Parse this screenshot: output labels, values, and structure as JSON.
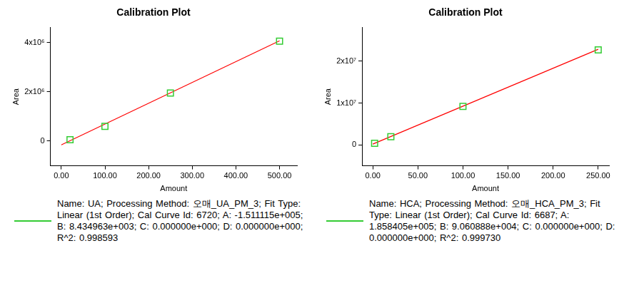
{
  "chart_data": [
    {
      "type": "scatter",
      "title": "Calibration Plot",
      "x_label": "Amount",
      "y_label": "Area",
      "xlim": [
        -25,
        540
      ],
      "xticks": [
        {
          "value": 0,
          "label": "0.00"
        },
        {
          "value": 100,
          "label": "100.00"
        },
        {
          "value": 200,
          "label": "200.00"
        },
        {
          "value": 300,
          "label": "300.00"
        },
        {
          "value": 400,
          "label": "400.00"
        },
        {
          "value": 500,
          "label": "500.00"
        }
      ],
      "ylim": [
        -1000000,
        4600000
      ],
      "yticks": [
        0,
        {
          "value": 2000000,
          "label": "2x10⁶"
        },
        {
          "value": 4000000,
          "label": "4x10⁶"
        }
      ],
      "grid": false,
      "series": [
        {
          "type": "scatter",
          "color": "#33cc33",
          "marker": "square",
          "x": [
            20,
            100,
            250,
            500
          ],
          "values": [
            60000,
            600000,
            1950000,
            4050000
          ]
        },
        {
          "type": "line",
          "color": "#ff0000",
          "line_style": "solid",
          "x": [
            0,
            500
          ],
          "values": [
            -150000,
            4066000
          ]
        }
      ],
      "caption": "Name: UA;   Processing Method: 오매_UA_PM_3; Fit Type: Linear (1st Order);   Cal Curve Id: 6720;   A: -1.511115e+005;   B: 8.434963e+003;   C: 0.000000e+000;   D: 0.000000e+000;   R^2: 0.998593"
    },
    {
      "type": "scatter",
      "title": "Calibration Plot",
      "x_label": "Amount",
      "y_label": "Area",
      "xlim": [
        -12,
        262
      ],
      "xticks": [
        {
          "value": 0,
          "label": "0.00"
        },
        {
          "value": 50,
          "label": "50.00"
        },
        {
          "value": 100,
          "label": "100.00"
        },
        {
          "value": 150,
          "label": "150.00"
        },
        {
          "value": 200,
          "label": "200.00"
        },
        {
          "value": 250,
          "label": "250.00"
        }
      ],
      "ylim": [
        -5000000,
        28000000
      ],
      "yticks": [
        0,
        {
          "value": 10000000,
          "label": "1x10⁷"
        },
        {
          "value": 20000000,
          "label": "2x10⁷"
        }
      ],
      "grid": false,
      "series": [
        {
          "type": "scatter",
          "color": "#33cc33",
          "marker": "square",
          "x": [
            2,
            20,
            100,
            250
          ],
          "values": [
            370000,
            1950000,
            9200000,
            22700000
          ]
        },
        {
          "type": "line",
          "color": "#ff0000",
          "line_style": "solid",
          "x": [
            0,
            250
          ],
          "values": [
            186000,
            22838000
          ]
        }
      ],
      "caption": "Name: HCA;   Processing Method: 오매_HCA_PM_3;   Fit Type: Linear (1st Order);   Cal Curve Id: 6687;   A: 1.858405e+005;   B: 9.060888e+004;   C: 0.000000e+000;   D: 0.000000e+000;   R^2: 0.999730"
    }
  ]
}
